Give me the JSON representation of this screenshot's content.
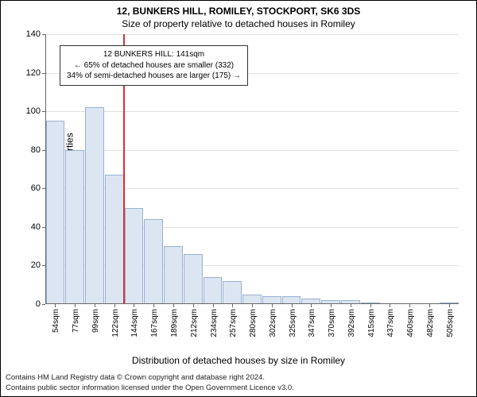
{
  "title_line1": "12, BUNKERS HILL, ROMILEY, STOCKPORT, SK6 3DS",
  "title_line2": "Size of property relative to detached houses in Romiley",
  "y_axis_label": "Number of detached properties",
  "x_axis_label": "Distribution of detached houses by size in Romiley",
  "chart": {
    "type": "histogram",
    "ylim": [
      0,
      140
    ],
    "ytick_step": 20,
    "yticks": [
      0,
      20,
      40,
      60,
      80,
      100,
      120,
      140
    ],
    "bar_fill": "#dce5f2",
    "bar_border": "#9ab0cf",
    "grid_color": "#e0e0e0",
    "axis_color": "#666666",
    "background_color": "#ffffff",
    "title_fontsize": 12,
    "label_fontsize": 12,
    "tick_fontsize": 10,
    "categories": [
      "54sqm",
      "77sqm",
      "99sqm",
      "122sqm",
      "144sqm",
      "167sqm",
      "189sqm",
      "212sqm",
      "234sqm",
      "257sqm",
      "280sqm",
      "302sqm",
      "325sqm",
      "347sqm",
      "370sqm",
      "392sqm",
      "415sqm",
      "437sqm",
      "460sqm",
      "482sqm",
      "505sqm"
    ],
    "values": [
      95,
      80,
      102,
      67,
      50,
      44,
      30,
      26,
      14,
      12,
      5,
      4,
      4,
      3,
      2,
      2,
      1,
      0,
      0,
      0,
      1
    ],
    "reference": {
      "value_sqm": 141,
      "color": "#d33333",
      "between_index": [
        3,
        4
      ]
    }
  },
  "annotation": {
    "line1": "12 BUNKERS HILL: 141sqm",
    "line2": "← 65% of detached houses are smaller (332)",
    "line3": "34% of semi-detached houses are larger (175) →",
    "border_color": "#333333",
    "background": "#ffffff",
    "fontsize": 10
  },
  "footer": {
    "line1": "Contains HM Land Registry data © Crown copyright and database right 2024.",
    "line2": "Contains public sector information licensed under the Open Government Licence v3.0.",
    "fontsize": 9.5
  }
}
